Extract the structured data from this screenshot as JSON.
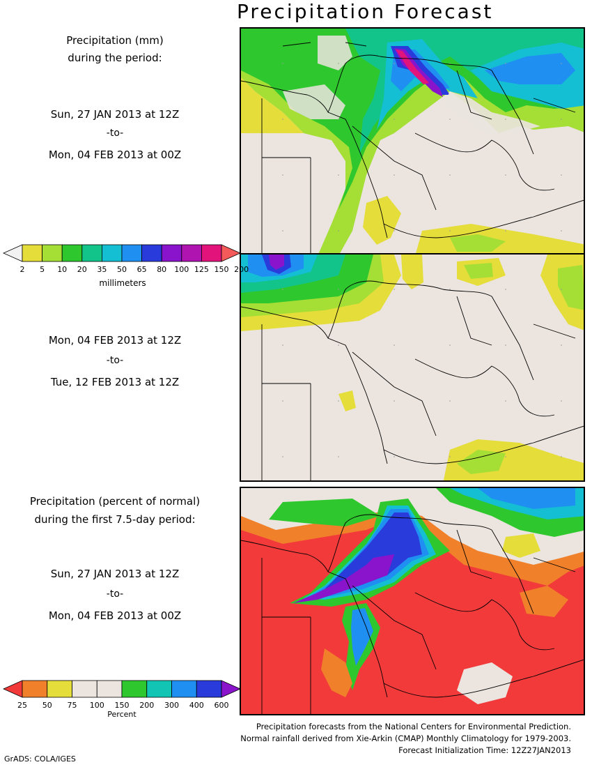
{
  "title": "Precipitation Forecast",
  "panel1": {
    "heading_line1": "Precipitation (mm)",
    "heading_line2": "during the period:",
    "start": "Sun, 27 JAN 2013 at 12Z",
    "to": "-to-",
    "end": "Mon, 04 FEB 2013 at 00Z"
  },
  "panel2": {
    "start": "Mon, 04 FEB 2013 at 12Z",
    "to": "-to-",
    "end": "Tue, 12 FEB 2013 at 12Z"
  },
  "panel3": {
    "heading_line1": "Precipitation (percent of normal)",
    "heading_line2": "during the first 7.5-day period:",
    "start": "Sun, 27 JAN 2013 at 12Z",
    "to": "-to-",
    "end": "Mon, 04 FEB 2013 at 00Z"
  },
  "colorbar_mm": {
    "ticks": [
      "2",
      "5",
      "10",
      "20",
      "35",
      "50",
      "65",
      "80",
      "100",
      "125",
      "150",
      "200"
    ],
    "colors": [
      "#f2f2f2",
      "#e5dd3a",
      "#a5de35",
      "#2ec82e",
      "#12c48a",
      "#14bed3",
      "#1f8ff2",
      "#2a3bdc",
      "#8a14cc",
      "#b014b0",
      "#e2147c",
      "#f45a5a"
    ],
    "unit": "millimeters"
  },
  "colorbar_pct": {
    "ticks": [
      "25",
      "50",
      "75",
      "100",
      "150",
      "200",
      "300",
      "400",
      "600"
    ],
    "colors": [
      "#f23a3a",
      "#f0802a",
      "#e5dd3a",
      "#ebe4df",
      "#ebe4df",
      "#2ec82e",
      "#12c4b4",
      "#1f8ff2",
      "#2a3bdc",
      "#8a14cc"
    ],
    "unit": "Percent"
  },
  "footer": {
    "line1": "Precipitation forecasts from the National Centers for Environmental Prediction.",
    "line2": "Normal rainfall derived from Xie-Arkin (CMAP) Monthly Climatology for 1979-2003.",
    "line3": "Forecast Initialization Time: 12Z27JAN2013"
  },
  "credit": "GrADS: COLA/IGES",
  "map_colors": {
    "land": "#ebe4df",
    "red": "#f23a3a",
    "yellow": "#e5dd3a",
    "lightgreen": "#a5de35",
    "green": "#2ec82e",
    "teal": "#12c48a",
    "cyan": "#14bed3",
    "blue": "#1f8ff2",
    "darkblue": "#2a3bdc",
    "purple": "#8a14cc",
    "magenta": "#b014b0",
    "pink": "#e2147c",
    "orange": "#f0802a"
  }
}
